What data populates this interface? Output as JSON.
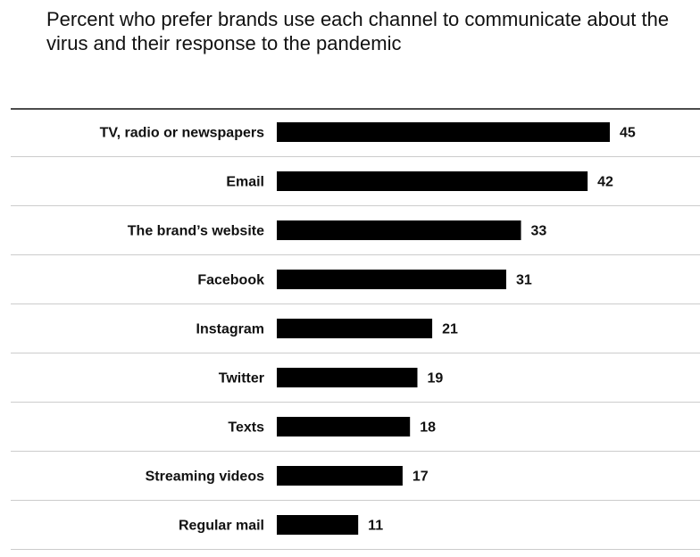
{
  "chart_data": {
    "type": "bar",
    "orientation": "horizontal",
    "title": "Percent who prefer brands use each channel to communicate about the virus and their response to the pandemic",
    "categories": [
      "TV, radio or newspapers",
      "Email",
      "The brand’s website",
      "Facebook",
      "Instagram",
      "Twitter",
      "Texts",
      "Streaming videos",
      "Regular mail"
    ],
    "values": [
      45,
      42,
      33,
      31,
      21,
      19,
      18,
      17,
      11
    ],
    "value_labels": [
      "45",
      "42",
      "33",
      "31",
      "21",
      "19",
      "18",
      "17",
      "11"
    ],
    "xlim": [
      0,
      50
    ],
    "grid": false,
    "legend": "none",
    "bar_color": "#000000",
    "separator_color": "#cccccc",
    "top_rule_color": "#111111"
  }
}
